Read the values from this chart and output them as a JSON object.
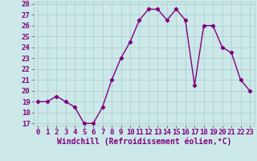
{
  "x": [
    0,
    1,
    2,
    3,
    4,
    5,
    6,
    7,
    8,
    9,
    10,
    11,
    12,
    13,
    14,
    15,
    16,
    17,
    18,
    19,
    20,
    21,
    22,
    23
  ],
  "y": [
    19,
    19,
    19.5,
    19,
    18.5,
    17,
    17,
    18.5,
    21,
    23,
    24.5,
    26.5,
    27.5,
    27.5,
    26.5,
    27.5,
    26.5,
    20.5,
    26,
    26,
    24,
    23.5,
    21,
    20
  ],
  "line_color": "#800080",
  "marker": "D",
  "marker_size": 2.2,
  "bg_color": "#cce8e8",
  "grid_color": "#aacccc",
  "xlabel": "Windchill (Refroidissement éolien,°C)",
  "xlabel_color": "#800080",
  "tick_color": "#800080",
  "ylim": [
    17,
    28
  ],
  "xlim": [
    -0.5,
    23.5
  ],
  "yticks": [
    17,
    18,
    19,
    20,
    21,
    22,
    23,
    24,
    25,
    26,
    27,
    28
  ],
  "xticks": [
    0,
    1,
    2,
    3,
    4,
    5,
    6,
    7,
    8,
    9,
    10,
    11,
    12,
    13,
    14,
    15,
    16,
    17,
    18,
    19,
    20,
    21,
    22,
    23
  ],
  "xlabel_fontsize": 7.0,
  "tick_fontsize": 6.5,
  "linewidth": 1.0
}
